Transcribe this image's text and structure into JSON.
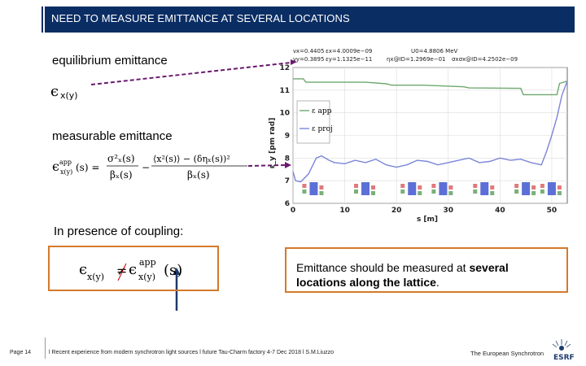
{
  "header": {
    "title": "NEED TO MEASURE EMITTANCE AT SEVERAL LOCATIONS"
  },
  "labels": {
    "equilibrium": "equilibrium emittance",
    "measurable": "measurable emittance",
    "coupling": "In presence of coupling:"
  },
  "note": {
    "part1": "Emittance should be measured at ",
    "bold1": "several",
    "bold2": "locations along the lattice",
    "end": "."
  },
  "plot": {
    "legend": [
      "ε_y^app",
      "ε_y^proj"
    ],
    "ylabel": "ε_y [pm rad]",
    "xlabel": "s [m]",
    "yticks": [
      "6",
      "7",
      "8",
      "9",
      "10",
      "11",
      "12"
    ],
    "xticks": [
      "0",
      "10",
      "20",
      "30",
      "40",
      "50"
    ],
    "params": [
      "νx=0.4405",
      "νy=0.3895",
      "εx=4.0009e−09",
      "εy=1.1325e−11",
      "U0=4.8806 MeV",
      "ηx@ID=1.2969e−01",
      "σxσx@ID=4.2502e−09"
    ]
  },
  "footer": {
    "page": "Page 14",
    "text": "l Recent experience from modern synchrotron light sources l future Tau-Charm factory 4-7 Dec 2018 l S.M.Liuzzo",
    "brand": "The European Synchrotron",
    "logo": "ESRF"
  },
  "chart_data": {
    "type": "line",
    "xlabel": "s [m]",
    "ylabel": "ε_y [pm rad]",
    "xlim": [
      0,
      53
    ],
    "ylim": [
      6,
      12
    ],
    "series": [
      {
        "name": "ε_y^app",
        "x": [
          0,
          2,
          2.5,
          14,
          18,
          19,
          25,
          33,
          34,
          44,
          44.5,
          51,
          51.5,
          53
        ],
        "values": [
          11.5,
          11.5,
          11.35,
          11.35,
          11.28,
          11.22,
          11.22,
          11.15,
          11.1,
          11.08,
          10.8,
          10.8,
          11.3,
          11.4
        ]
      },
      {
        "name": "ε_y^proj",
        "x": [
          0,
          0.5,
          1.5,
          3,
          4.5,
          5.5,
          7,
          8,
          10,
          12,
          14,
          16,
          18,
          20,
          22,
          24,
          26,
          28,
          30,
          32,
          34,
          36,
          38,
          40,
          42,
          44,
          46,
          48,
          49,
          50,
          51,
          52,
          53
        ],
        "values": [
          7.4,
          7.0,
          6.95,
          7.3,
          8.0,
          8.1,
          7.9,
          7.8,
          7.75,
          7.9,
          7.8,
          7.95,
          7.7,
          7.6,
          7.7,
          7.9,
          7.85,
          7.7,
          7.8,
          7.9,
          8.0,
          7.8,
          7.85,
          8.0,
          7.9,
          7.95,
          7.8,
          7.7,
          8.3,
          9.0,
          9.8,
          10.8,
          11.4
        ]
      }
    ]
  }
}
